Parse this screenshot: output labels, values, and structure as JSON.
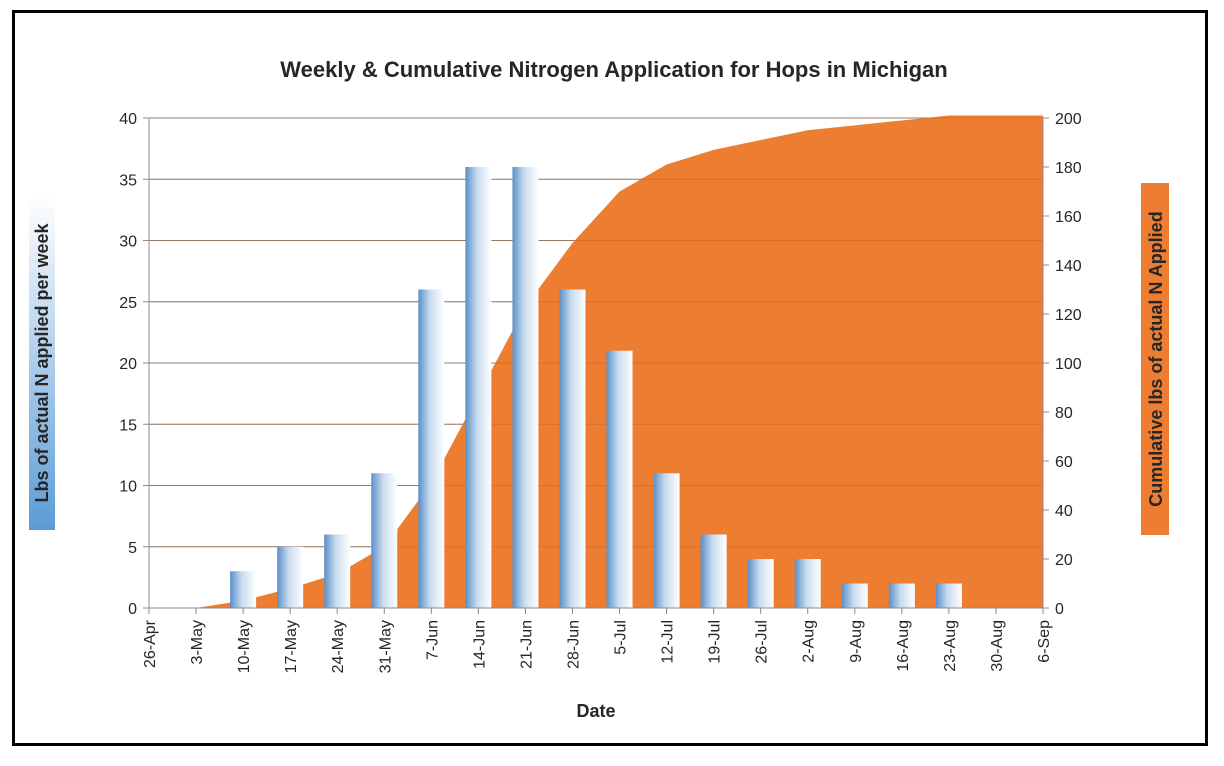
{
  "chart_data": {
    "type": "bar",
    "title": "Weekly & Cumulative Nitrogen Application for Hops in Michigan",
    "xlabel": "Date",
    "ylabel": "Lbs of actual N applied per week",
    "y2label": "Cumulative lbs of actual N Applied",
    "categories": [
      "26-Apr",
      "3-May",
      "10-May",
      "17-May",
      "24-May",
      "31-May",
      "7-Jun",
      "14-Jun",
      "21-Jun",
      "28-Jun",
      "5-Jul",
      "12-Jul",
      "19-Jul",
      "26-Jul",
      "2-Aug",
      "9-Aug",
      "16-Aug",
      "23-Aug",
      "30-Aug",
      "6-Sep"
    ],
    "series": [
      {
        "type": "bar",
        "axis": "left",
        "values": [
          0,
          0,
          3,
          5,
          6,
          11,
          26,
          36,
          36,
          26,
          21,
          11,
          6,
          4,
          4,
          2,
          2,
          2,
          0,
          0
        ]
      },
      {
        "type": "area",
        "axis": "right",
        "values": [
          0,
          0,
          3,
          8,
          14,
          25,
          51,
          87,
          123,
          149,
          170,
          181,
          187,
          191,
          195,
          197,
          199,
          201,
          201,
          201
        ]
      }
    ],
    "ylim": [
      0,
      40
    ],
    "yticks": [
      0,
      5,
      10,
      15,
      20,
      25,
      30,
      35,
      40
    ],
    "y2lim": [
      0,
      200
    ],
    "y2ticks": [
      0,
      20,
      40,
      60,
      80,
      100,
      120,
      140,
      160,
      180,
      200
    ],
    "grid": true,
    "colors": {
      "area": "#ED7D31",
      "bar_light": "#ffffff",
      "bar_dark": "#5B8FC8",
      "ylabel_bg": "#5B9BD5",
      "y2label_bg": "#ED7D31"
    }
  }
}
